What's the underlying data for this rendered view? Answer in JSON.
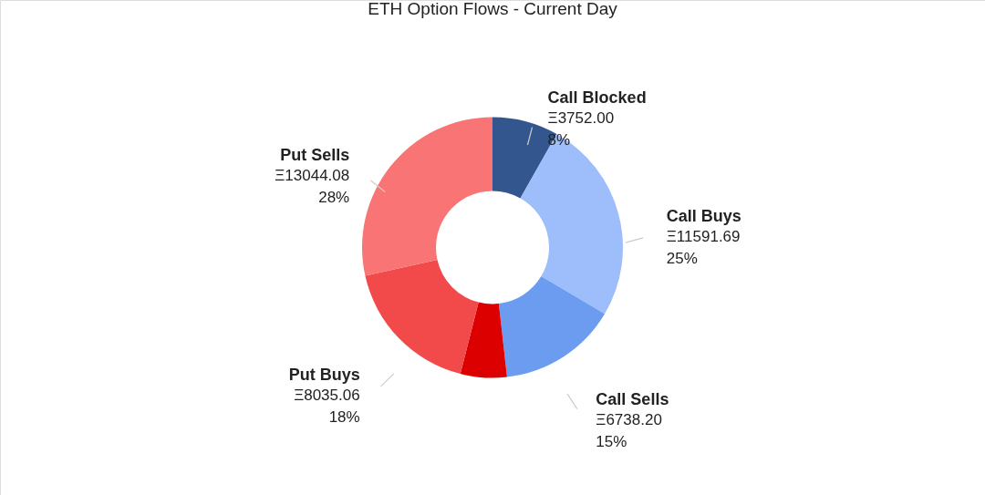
{
  "chart_data": {
    "type": "donut",
    "title": "ETH Option Flows - Current Day",
    "categories": [
      "Call Blocked",
      "Call Buys",
      "Call Sells",
      null,
      "Put Buys",
      "Put Sells"
    ],
    "values": [
      3752.0,
      11591.69,
      6738.2,
      2629,
      8035.06,
      13044.08
    ],
    "colors": [
      "#34568f",
      "#9dbdfb",
      "#6b9cf0",
      "#dd0000",
      "#f24a4a",
      "#f97474"
    ],
    "value_labels": [
      "Ξ3752.00\n8%",
      "Ξ11591.69\n25%",
      "Ξ6738.20\n15%",
      null,
      "Ξ8035.06\n18%",
      "Ξ13044.08\n28%"
    ],
    "legend": false
  }
}
